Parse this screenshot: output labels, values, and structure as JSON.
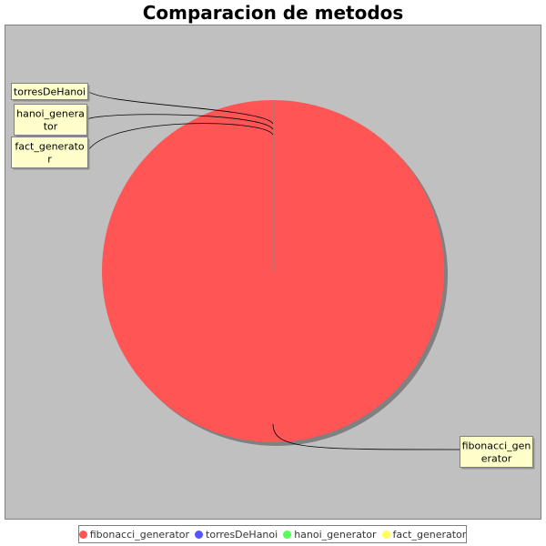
{
  "chart_data": {
    "type": "pie",
    "title": "Comparacion de metodos",
    "slices": [
      {
        "name": "fibonacci_generator",
        "value": 1.0,
        "color": "#ff5555",
        "label_lines": [
          "fibonacci_gen",
          "erator"
        ]
      },
      {
        "name": "torresDeHanoi",
        "value": 0,
        "color": "#5555ff",
        "label_lines": [
          "torresDeHanoi"
        ]
      },
      {
        "name": "hanoi_generator",
        "value": 0,
        "color": "#55ff55",
        "label_lines": [
          "hanoi_genera",
          "tor"
        ]
      },
      {
        "name": "fact_generator",
        "value": 0,
        "color": "#ffff55",
        "label_lines": [
          "fact_generato",
          "r"
        ]
      }
    ],
    "legend": {
      "position": "bottom",
      "entries": [
        "fibonacci_generator",
        "torresDeHanoi",
        "hanoi_generator",
        "fact_generator"
      ]
    },
    "plot_background": "#c0c0c0",
    "label_background": "#ffffcc"
  }
}
